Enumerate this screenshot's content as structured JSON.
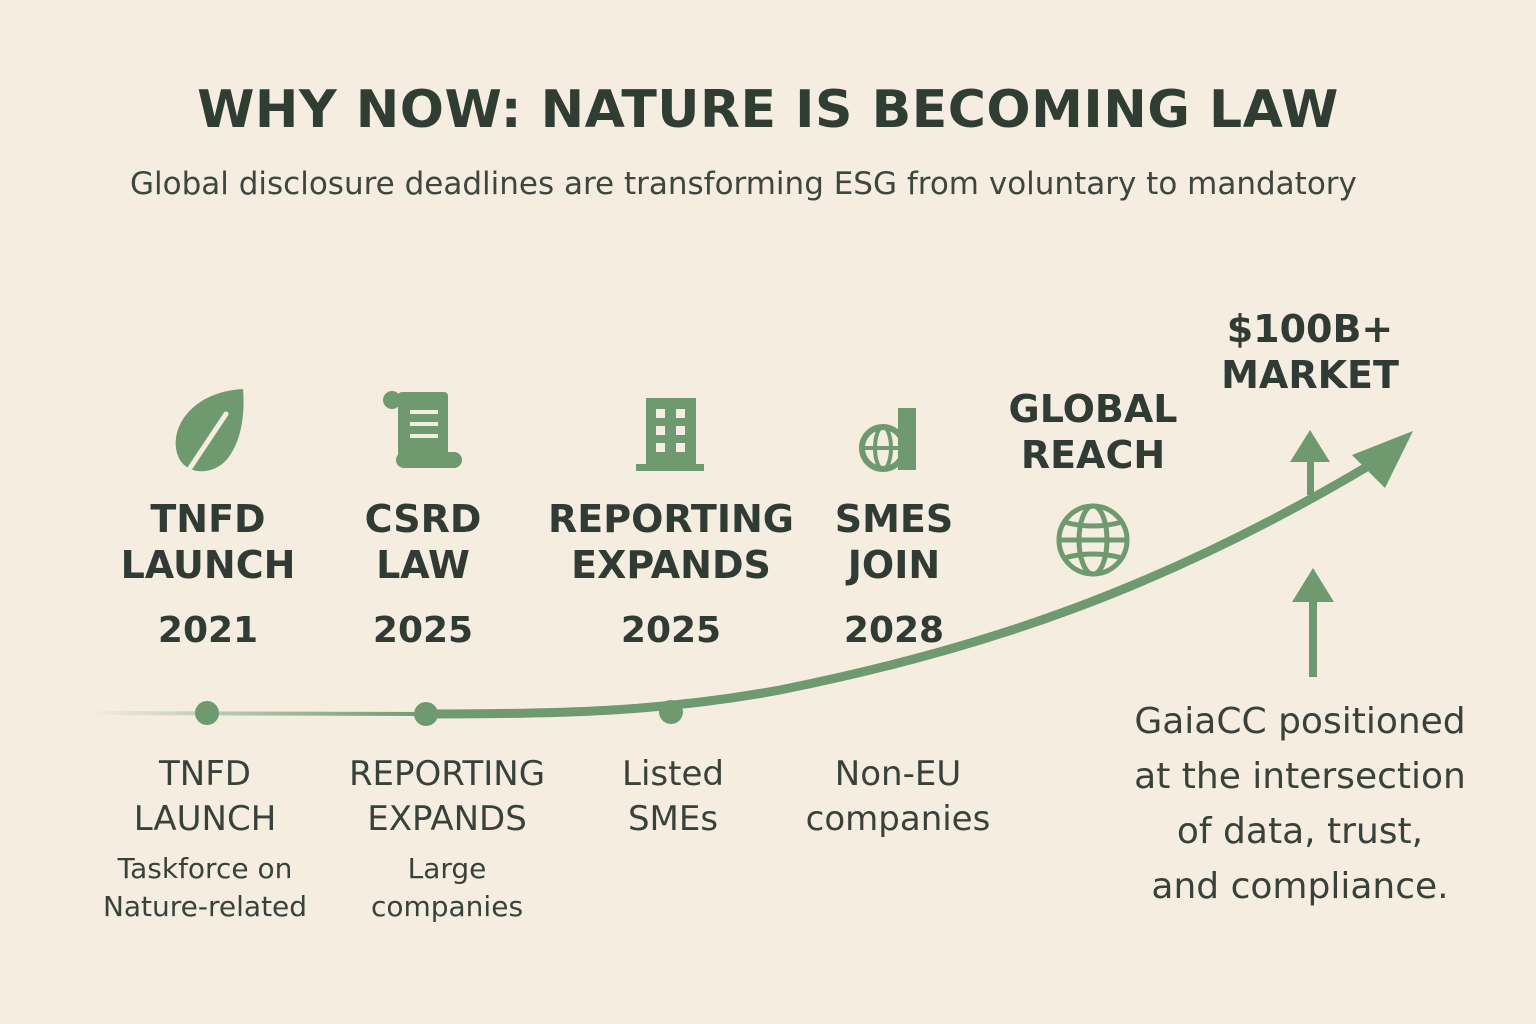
{
  "title": "WHY NOW: NATURE IS BECOMING LAW",
  "subtitle": "Global disclosure deadlines are transforming ESG from voluntary to mandatory",
  "colors": {
    "background": "#f4ede0",
    "accent": "#6f9a6f",
    "text": "#2f3b33"
  },
  "milestones": [
    {
      "icon": "leaf-icon",
      "line1": "TNFD",
      "line2": "LAUNCH",
      "year": "2021",
      "below_line1": "TNFD",
      "below_line2": "LAUNCH",
      "desc_line1": "Taskforce on",
      "desc_line2": "Nature-related"
    },
    {
      "icon": "scroll-icon",
      "line1": "CSRD",
      "line2": "LAW",
      "year": "2025",
      "below_line1": "REPORTING",
      "below_line2": "EXPANDS",
      "desc_line1": "Large",
      "desc_line2": "companies"
    },
    {
      "icon": "building-icon",
      "line1": "REPORTING",
      "line2": "EXPANDS",
      "year": "2025",
      "below_line1": "Listed",
      "below_line2": "SMEs"
    },
    {
      "icon": "globe-chart-icon",
      "line1": "SMES",
      "line2": "JOIN",
      "year": "2028",
      "below_line1": "Non-EU",
      "below_line2": "companies"
    }
  ],
  "global_reach": {
    "line1": "GLOBAL",
    "line2": "REACH",
    "icon": "globe-icon"
  },
  "market": {
    "line1": "$100B+",
    "line2": "MARKET"
  },
  "note": {
    "line1": "GaiaCC positioned",
    "line2": "at the intersection",
    "line3": "of data, trust,",
    "line4": "and compliance."
  }
}
